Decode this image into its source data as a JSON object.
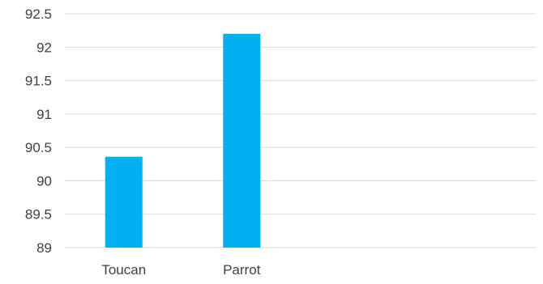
{
  "chart_data": {
    "type": "bar",
    "title": "",
    "xlabel": "",
    "ylabel": "",
    "categories": [
      "Toucan",
      "Parrot",
      "",
      ""
    ],
    "values": [
      90.36,
      92.2,
      null,
      null
    ],
    "ylim": [
      89,
      92.5
    ],
    "y_ticks": [
      "89",
      "89.5",
      "90",
      "90.5",
      "91",
      "91.5",
      "92",
      "92.5"
    ],
    "grid": true,
    "legend": "none",
    "bar_color": "#00b0f0",
    "grid_color": "#d9d9d9",
    "text_color": "#404040"
  }
}
